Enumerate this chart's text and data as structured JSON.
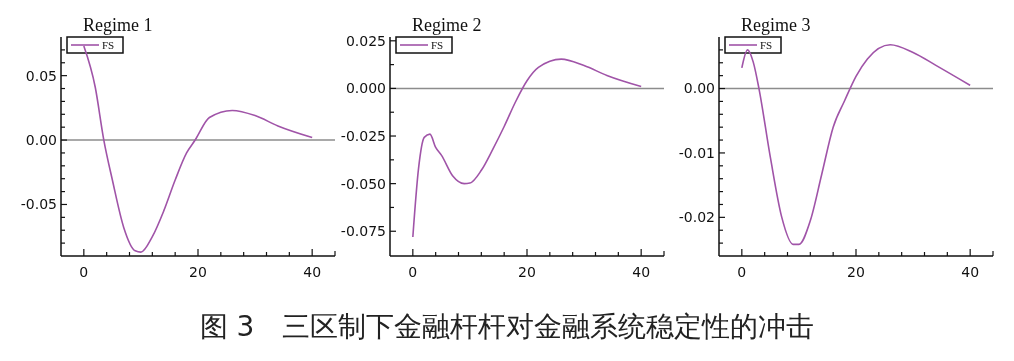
{
  "chart_data": [
    {
      "type": "line",
      "title": "Regime 1",
      "x": [
        0,
        2,
        3.5,
        5,
        7,
        9,
        10,
        12,
        14,
        16,
        18,
        19.5,
        22,
        26,
        30,
        34,
        40
      ],
      "series": [
        {
          "name": "FS",
          "color": "#a054a8",
          "values": [
            0.073,
            0.041,
            0,
            -0.031,
            -0.068,
            -0.086,
            -0.087,
            -0.075,
            -0.055,
            -0.031,
            -0.01,
            0,
            0.0175,
            0.023,
            0.019,
            0.011,
            0.002
          ]
        }
      ],
      "xlim": [
        -4,
        44
      ],
      "ylim": [
        -0.09,
        0.08
      ],
      "xticks": [
        0,
        {
          "value": 4,
          "label": null
        },
        {
          "value": 8,
          "label": null
        },
        {
          "value": 12,
          "label": null
        },
        {
          "value": 16,
          "label": null
        },
        20,
        {
          "value": 24,
          "label": null
        },
        {
          "value": 28,
          "label": null
        },
        {
          "value": 32,
          "label": null
        },
        {
          "value": 36,
          "label": null
        },
        40
      ],
      "yticks": [
        {
          "value": -0.08,
          "label": null
        },
        {
          "value": -0.07,
          "label": null
        },
        {
          "value": -0.06,
          "label": null
        },
        -0.05,
        {
          "value": -0.04,
          "label": null
        },
        {
          "value": -0.03,
          "label": null
        },
        {
          "value": -0.02,
          "label": null
        },
        {
          "value": -0.01,
          "label": null
        },
        {
          "value": 0,
          "label": "0.00"
        },
        {
          "value": 0.01,
          "label": null
        },
        {
          "value": 0.02,
          "label": null
        },
        {
          "value": 0.03,
          "label": null
        },
        {
          "value": 0.04,
          "label": null
        },
        0.05,
        {
          "value": 0.06,
          "label": null
        },
        {
          "value": 0.07,
          "label": null
        }
      ],
      "ref_lines": [
        {
          "axis": "y",
          "value": 0,
          "color": "#8c8c8c"
        }
      ],
      "legend": "top left",
      "grid": false
    },
    {
      "type": "line",
      "title": "Regime 2",
      "x": [
        0,
        1,
        2,
        3,
        4,
        5,
        7,
        9,
        10,
        12,
        14,
        16,
        18,
        20,
        22,
        26,
        30,
        34,
        40
      ],
      "series": [
        {
          "name": "FS",
          "color": "#a054a8",
          "values": [
            -0.078,
            -0.042,
            -0.0257,
            -0.024,
            -0.031,
            -0.035,
            -0.046,
            -0.05,
            -0.0497,
            -0.043,
            -0.032,
            -0.02,
            -0.007,
            0.004,
            0.011,
            0.0154,
            0.012,
            0.0068,
            0.001
          ]
        }
      ],
      "xlim": [
        -4,
        44
      ],
      "ylim": [
        -0.088,
        0.027
      ],
      "xticks": [
        0,
        {
          "value": 4,
          "label": null
        },
        {
          "value": 8,
          "label": null
        },
        {
          "value": 12,
          "label": null
        },
        {
          "value": 16,
          "label": null
        },
        20,
        {
          "value": 24,
          "label": null
        },
        {
          "value": 28,
          "label": null
        },
        {
          "value": 32,
          "label": null
        },
        {
          "value": 36,
          "label": null
        },
        40
      ],
      "yticks": [
        {
          "value": -0.075,
          "label": "-0.075"
        },
        {
          "value": -0.0625,
          "label": null
        },
        {
          "value": -0.05,
          "label": "-0.050"
        },
        {
          "value": -0.0375,
          "label": null
        },
        -0.025,
        {
          "value": -0.0125,
          "label": null
        },
        {
          "value": 0,
          "label": "0.000"
        },
        {
          "value": 0.0125,
          "label": null
        },
        0.025
      ],
      "ref_lines": [
        {
          "axis": "y",
          "value": 0,
          "color": "#8c8c8c"
        }
      ],
      "legend": "top left",
      "grid": false,
      "annotations": [
        "图 3　三区制下金融杆杆对金融系统稳定性的冲击"
      ]
    },
    {
      "type": "line",
      "title": "Regime 3",
      "x": [
        0,
        1,
        2,
        3,
        5,
        7,
        9,
        10,
        12,
        14,
        16,
        18,
        20,
        22,
        26,
        30,
        34,
        40
      ],
      "series": [
        {
          "name": "FS",
          "color": "#a054a8",
          "values": [
            0.0032,
            0.006,
            0.0041,
            0,
            -0.0107,
            -0.02,
            -0.0242,
            -0.0242,
            -0.0205,
            -0.0133,
            -0.006,
            -0.0019,
            0.0019,
            0.0046,
            0.0068,
            0.0056,
            0.0036,
            0.0005
          ]
        }
      ],
      "xlim": [
        -4,
        44
      ],
      "ylim": [
        -0.026,
        0.008
      ],
      "xticks": [
        0,
        {
          "value": 4,
          "label": null
        },
        {
          "value": 8,
          "label": null
        },
        {
          "value": 12,
          "label": null
        },
        {
          "value": 16,
          "label": null
        },
        20,
        {
          "value": 24,
          "label": null
        },
        {
          "value": 28,
          "label": null
        },
        {
          "value": 32,
          "label": null
        },
        {
          "value": 36,
          "label": null
        },
        40
      ],
      "yticks": [
        {
          "value": -0.024,
          "label": null
        },
        {
          "value": -0.022,
          "label": null
        },
        -0.02,
        {
          "value": -0.018,
          "label": null
        },
        {
          "value": -0.016,
          "label": null
        },
        {
          "value": -0.014,
          "label": null
        },
        {
          "value": -0.012,
          "label": null
        },
        -0.01,
        {
          "value": -0.008,
          "label": null
        },
        {
          "value": -0.006,
          "label": null
        },
        {
          "value": -0.004,
          "label": null
        },
        {
          "value": -0.002,
          "label": null
        },
        {
          "value": 0,
          "label": "0.00"
        },
        {
          "value": 0.002,
          "label": null
        },
        {
          "value": 0.004,
          "label": null
        },
        {
          "value": 0.006,
          "label": null
        }
      ],
      "ref_lines": [
        {
          "axis": "y",
          "value": 0,
          "color": "#8c8c8c"
        }
      ],
      "legend": "top left",
      "grid": false
    }
  ]
}
